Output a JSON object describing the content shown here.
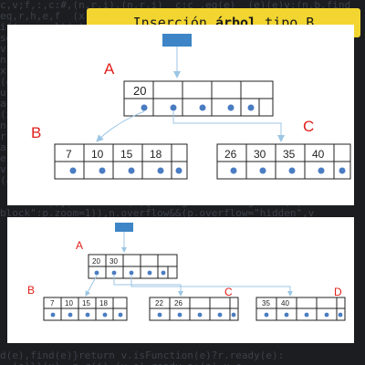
{
  "title": {
    "prefix": "Inserción ",
    "bold": "árbol",
    "suffix": " tipo B"
  },
  "bg_code": [
    "c,v;f,:,c:#,(n,r,i),(n,r,i)  c;c .eq(e)  (e)(e)v;(n,b.find",
    "eq,r,h,e,f  (x) e;u}  (n,r,i) (e),x-(a) (n,r,i),n.a){b,f(e)",
    "if(r,u,e,l)(e)    ready,d,i,(n) map:m.display  (n,r,e),(a,n)",
    "sele.(r,u),cl(c,v,i)(e)   f.x,d,(n) eq:h.e  (e)(i).v",
    "v,r,e;(a)  e.l(e) n,x   (n,r,i),b(a,c)  ready (t,e)",
    "n.(i,e),(r)  (a,b,c)(d) v,(e,i),(n) e,x:(a) n;r",
    "x.(a,b) ready i,e(n,a)   ready(e) v;(x,r,i) (t)",
    "(e,n),(x) a.r;(e)  c,v(a,b)  (r,i,e),n.x(a)",
    "u.(a,e)   e,(n) ready;x.r(e)  (c,v,i),(e) n",
    "a.r,v(e)  (n,x) i.e(a,b) r;(t,e) ready(n)",
    "(x,e)(a)  v.(n,r,i) e(e) map(a,b)  r;x",
    "n.e(r,u)  (a,b),c  e;(x) ready i(n,a)  v",
    "r,(e,n)  i.x(a)  (c,v) n;e(a,b)  ready",
    "a,(x,r)  e.n(i)  map(a) (r,e)  v;x(e)",
    "e,(n,i)  x.a(r)  (c,b) e;n(a)  ready(x)",
    "v.(r,e)  a,n(i)  (x,e) r;v(a,b) i.e",
    "(a,n)  e.r(x)  v,(i,e) n;a  ready(e,r)",
    "                                           ",
    "  \"fire\"))}):function(e){e.height in \"height\"in(e)",
    "block\":p.zoom=1)),n.overflow&&(p.overflow=\"hidden\",v",
    "  \"if(s==(a?\"hide\":\"show\")&&continue;",
    "  ,;r,i (e) (n,r,i)(e)  ready v(x)  (a,b)",
    "                                           ",
    "                                           ",
    "                                           ",
    "                                           ",
    "                                           ",
    "                                           ",
    "                                           ",
    "                                           ",
    "                                           ",
    "                                           ",
    "d(e),find(e)}return v.isFunction(e)?r.ready(e):",
    "  (e)})(x)  n.r(i) (v,e) ready a;(n) x.e"
  ],
  "diagram_top": {
    "levels": {
      "A": "A",
      "B": "B",
      "C": "C"
    },
    "root_keys": [
      "20",
      "",
      "",
      "",
      ""
    ],
    "left_keys": [
      "7",
      "10",
      "15",
      "18"
    ],
    "right_keys": [
      "26",
      "30",
      "35",
      "40"
    ]
  },
  "diagram_bottom": {
    "levels": {
      "A": "A",
      "B": "B",
      "C": "C",
      "D": "D"
    },
    "root_keys": [
      "20",
      "30",
      "",
      "",
      ""
    ],
    "left_keys": [
      "7",
      "10",
      "15",
      "18"
    ],
    "mid_keys": [
      "22",
      "26",
      "",
      ""
    ],
    "right_keys": [
      "35",
      "40",
      "",
      ""
    ]
  },
  "colors": {
    "banner": "#f3d531",
    "root_marker": "#3d85c6",
    "pointer_dot": "#4a7cc2",
    "arrow": "#9cc6e4",
    "level_label": "#e0201c"
  }
}
